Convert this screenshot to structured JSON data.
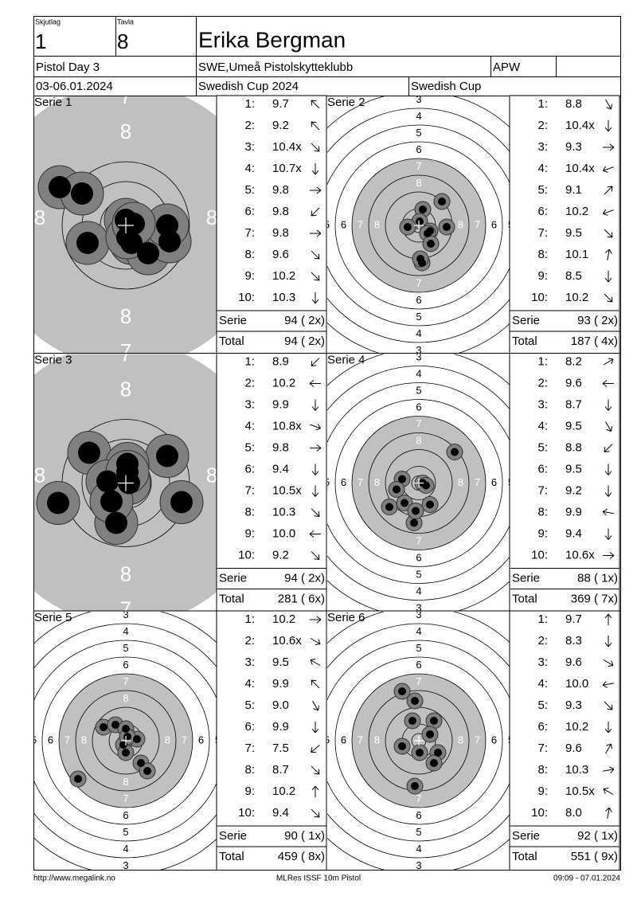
{
  "header": {
    "squad_label": "Skjutlag",
    "squad": "1",
    "target_label": "Tavla",
    "target": "8",
    "name": "Erika Bergman",
    "event": "Pistol Day 3",
    "club": "SWE,Umeå Pistolskytteklubb",
    "class": "APW",
    "date": "03-06.01.2024",
    "competition": "Swedish Cup 2024",
    "cup": "Swedish Cup"
  },
  "ring_labels": [
    "3",
    "4",
    "5",
    "6",
    "7",
    "8"
  ],
  "series": [
    {
      "label": "Serie 1",
      "shots": [
        {
          "no": "1:",
          "score": "9.7"
        },
        {
          "no": "2:",
          "score": "9.2"
        },
        {
          "no": "3:",
          "score": "10.4x"
        },
        {
          "no": "4:",
          "score": "10.7x"
        },
        {
          "no": "5:",
          "score": "9.8"
        },
        {
          "no": "6:",
          "score": "9.8"
        },
        {
          "no": "7:",
          "score": "9.8"
        },
        {
          "no": "8:",
          "score": "9.6"
        },
        {
          "no": "9:",
          "score": "10.2"
        },
        {
          "no": "10:",
          "score": "10.3"
        }
      ],
      "serie_label": "Serie",
      "serie_score": "94 ( 2x)",
      "total_label": "Total",
      "total_score": "94 ( 2x)"
    },
    {
      "label": "Serie 2",
      "shots": [
        {
          "no": "1:",
          "score": "8.8"
        },
        {
          "no": "2:",
          "score": "10.4x"
        },
        {
          "no": "3:",
          "score": "9.3"
        },
        {
          "no": "4:",
          "score": "10.4x"
        },
        {
          "no": "5:",
          "score": "9.1"
        },
        {
          "no": "6:",
          "score": "10.2"
        },
        {
          "no": "7:",
          "score": "9.5"
        },
        {
          "no": "8:",
          "score": "10.1"
        },
        {
          "no": "9:",
          "score": "8.5"
        },
        {
          "no": "10:",
          "score": "10.2"
        }
      ],
      "serie_label": "Serie",
      "serie_score": "93 ( 2x)",
      "total_label": "Total",
      "total_score": "187 ( 4x)"
    },
    {
      "label": "Serie 3",
      "shots": [
        {
          "no": "1:",
          "score": "8.9"
        },
        {
          "no": "2:",
          "score": "10.2"
        },
        {
          "no": "3:",
          "score": "9.9"
        },
        {
          "no": "4:",
          "score": "10.8x"
        },
        {
          "no": "5:",
          "score": "9.8"
        },
        {
          "no": "6:",
          "score": "9.4"
        },
        {
          "no": "7:",
          "score": "10.5x"
        },
        {
          "no": "8:",
          "score": "10.3"
        },
        {
          "no": "9:",
          "score": "10.0"
        },
        {
          "no": "10:",
          "score": "9.2"
        }
      ],
      "serie_label": "Serie",
      "serie_score": "94 ( 2x)",
      "total_label": "Total",
      "total_score": "281 ( 6x)"
    },
    {
      "label": "Serie 4",
      "shots": [
        {
          "no": "1:",
          "score": "8.2"
        },
        {
          "no": "2:",
          "score": "9.6"
        },
        {
          "no": "3:",
          "score": "8.7"
        },
        {
          "no": "4:",
          "score": "9.5"
        },
        {
          "no": "5:",
          "score": "8.8"
        },
        {
          "no": "6:",
          "score": "9.5"
        },
        {
          "no": "7:",
          "score": "9.2"
        },
        {
          "no": "8:",
          "score": "9.9"
        },
        {
          "no": "9:",
          "score": "9.4"
        },
        {
          "no": "10:",
          "score": "10.6x"
        }
      ],
      "serie_label": "Serie",
      "serie_score": "88 ( 1x)",
      "total_label": "Total",
      "total_score": "369 ( 7x)"
    },
    {
      "label": "Serie 5",
      "shots": [
        {
          "no": "1:",
          "score": "10.2"
        },
        {
          "no": "2:",
          "score": "10.6x"
        },
        {
          "no": "3:",
          "score": "9.5"
        },
        {
          "no": "4:",
          "score": "9.9"
        },
        {
          "no": "5:",
          "score": "9.0"
        },
        {
          "no": "6:",
          "score": "9.9"
        },
        {
          "no": "7:",
          "score": "7.5"
        },
        {
          "no": "8:",
          "score": "8.7"
        },
        {
          "no": "9:",
          "score": "10.2"
        },
        {
          "no": "10:",
          "score": "9.4"
        }
      ],
      "serie_label": "Serie",
      "serie_score": "90 ( 1x)",
      "total_label": "Total",
      "total_score": "459 ( 8x)"
    },
    {
      "label": "Serie 6",
      "shots": [
        {
          "no": "1:",
          "score": "9.7"
        },
        {
          "no": "2:",
          "score": "8.3"
        },
        {
          "no": "3:",
          "score": "9.6"
        },
        {
          "no": "4:",
          "score": "10.0"
        },
        {
          "no": "5:",
          "score": "9.3"
        },
        {
          "no": "6:",
          "score": "10.2"
        },
        {
          "no": "7:",
          "score": "9.6"
        },
        {
          "no": "8:",
          "score": "10.3"
        },
        {
          "no": "9:",
          "score": "10.5x"
        },
        {
          "no": "10:",
          "score": "8.0"
        }
      ],
      "serie_label": "Serie",
      "serie_score": "92 ( 1x)",
      "total_label": "Total",
      "total_score": "551 ( 9x)"
    }
  ],
  "footer": {
    "url": "http://www.megalink.no",
    "software": "MLRes ISSF 10m Pistol",
    "timestamp": "09:09 - 07.01.2024"
  }
}
